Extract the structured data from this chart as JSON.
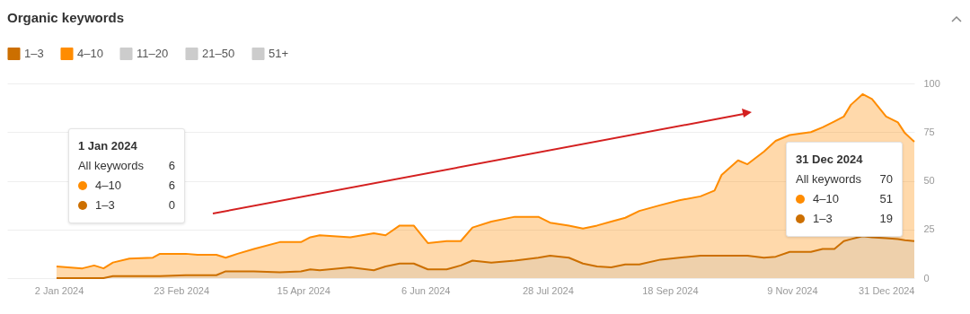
{
  "chart_data": {
    "type": "area",
    "title": "Organic keywords",
    "stacked": true,
    "legend": "top left",
    "grid": "y",
    "x": [
      "2024-01-01",
      "2024-01-12",
      "2024-01-17",
      "2024-01-21",
      "2024-01-25",
      "2024-02-01",
      "2024-02-11",
      "2024-02-14",
      "2024-02-25",
      "2024-03-01",
      "2024-03-09",
      "2024-03-13",
      "2024-03-18",
      "2024-03-25",
      "2024-04-05",
      "2024-04-14",
      "2024-04-18",
      "2024-04-22",
      "2024-05-05",
      "2024-05-15",
      "2024-05-20",
      "2024-05-26",
      "2024-06-01",
      "2024-06-07",
      "2024-06-15",
      "2024-06-21",
      "2024-06-26",
      "2024-07-04",
      "2024-07-14",
      "2024-07-24",
      "2024-07-29",
      "2024-08-06",
      "2024-08-12",
      "2024-08-18",
      "2024-08-24",
      "2024-08-30",
      "2024-09-05",
      "2024-09-14",
      "2024-09-22",
      "2024-10-01",
      "2024-10-07",
      "2024-10-10",
      "2024-10-17",
      "2024-10-21",
      "2024-10-28",
      "2024-11-02",
      "2024-11-08",
      "2024-11-17",
      "2024-11-22",
      "2024-11-27",
      "2024-12-01",
      "2024-12-04",
      "2024-12-09",
      "2024-12-13",
      "2024-12-19",
      "2024-12-24",
      "2024-12-27",
      "2024-12-31"
    ],
    "series": [
      {
        "name": "1–3",
        "color": "#cc6f00",
        "values": [
          0,
          0,
          0,
          0,
          1,
          1,
          1,
          1,
          1.5,
          1.5,
          1.5,
          3.5,
          3.5,
          3.5,
          3,
          3.5,
          4.5,
          4,
          5.5,
          4,
          6,
          7.5,
          7.5,
          4.5,
          4.5,
          6.5,
          9,
          8,
          9,
          10.5,
          11.5,
          10.5,
          7.5,
          6,
          5.5,
          7,
          7,
          9.5,
          10.5,
          11.5,
          11.5,
          11.5,
          11.5,
          11.5,
          10.5,
          11,
          13.5,
          13.5,
          15,
          15,
          19,
          20,
          21.5,
          21,
          20.5,
          20,
          19.5,
          19
        ]
      },
      {
        "name": "4–10",
        "color": "#ff8c00",
        "values": [
          6,
          5,
          6.5,
          5,
          7,
          9,
          9.5,
          11.5,
          11,
          10.5,
          10.5,
          7,
          9,
          11.5,
          15.5,
          15,
          16.5,
          18,
          15.5,
          19,
          16,
          19.5,
          19.5,
          13.5,
          14.5,
          12.5,
          17,
          21,
          22.5,
          21,
          17,
          16.5,
          18,
          21,
          23.5,
          24,
          27.5,
          28,
          29.5,
          30.5,
          33.5,
          41.5,
          49,
          47,
          54.5,
          59.5,
          60,
          61.5,
          62.5,
          65.5,
          64,
          69,
          73,
          71,
          62.5,
          60,
          55,
          51
        ]
      },
      {
        "name": "11–20",
        "color": "#cccccc",
        "values": [
          null,
          null,
          null,
          null,
          null,
          null,
          null,
          null,
          null,
          null,
          null,
          null,
          null,
          null,
          null,
          null,
          null,
          null,
          null,
          null,
          null,
          null,
          null,
          null,
          null,
          null,
          null,
          null,
          null,
          null,
          null,
          null,
          null,
          null,
          null,
          null,
          null,
          null,
          null,
          null,
          null,
          null,
          null,
          null,
          null,
          null,
          null,
          null,
          null,
          null,
          null,
          null,
          null,
          null,
          null,
          null,
          null,
          null
        ]
      },
      {
        "name": "21–50",
        "color": "#cccccc",
        "values": [
          null,
          null,
          null,
          null,
          null,
          null,
          null,
          null,
          null,
          null,
          null,
          null,
          null,
          null,
          null,
          null,
          null,
          null,
          null,
          null,
          null,
          null,
          null,
          null,
          null,
          null,
          null,
          null,
          null,
          null,
          null,
          null,
          null,
          null,
          null,
          null,
          null,
          null,
          null,
          null,
          null,
          null,
          null,
          null,
          null,
          null,
          null,
          null,
          null,
          null,
          null,
          null,
          null,
          null,
          null,
          null,
          null,
          null
        ]
      },
      {
        "name": "51+",
        "color": "#cccccc",
        "values": [
          null,
          null,
          null,
          null,
          null,
          null,
          null,
          null,
          null,
          null,
          null,
          null,
          null,
          null,
          null,
          null,
          null,
          null,
          null,
          null,
          null,
          null,
          null,
          null,
          null,
          null,
          null,
          null,
          null,
          null,
          null,
          null,
          null,
          null,
          null,
          null,
          null,
          null,
          null,
          null,
          null,
          null,
          null,
          null,
          null,
          null,
          null,
          null,
          null,
          null,
          null,
          null,
          null,
          null,
          null,
          null,
          null,
          null
        ]
      }
    ],
    "xlim": [
      "2023-12-11",
      "2024-12-31"
    ],
    "xticks": [
      {
        "value": "2024-01-02",
        "label": "2 Jan 2024"
      },
      {
        "value": "2024-02-23",
        "label": "23 Feb 2024"
      },
      {
        "value": "2024-04-15",
        "label": "15 Apr 2024"
      },
      {
        "value": "2024-06-06",
        "label": "6 Jun 2024"
      },
      {
        "value": "2024-07-28",
        "label": "28 Jul 2024"
      },
      {
        "value": "2024-09-18",
        "label": "18 Sep 2024"
      },
      {
        "value": "2024-11-09",
        "label": "9 Nov 2024"
      },
      {
        "value": "2024-12-31",
        "label": "31 Dec 2024"
      }
    ],
    "ylim": [
      0,
      100
    ],
    "yticks": [
      0,
      25,
      50,
      75,
      100
    ],
    "annotations": [
      "1 Jan 2024",
      "All keywords",
      "6",
      "4–10",
      "6",
      "1–3",
      "0",
      "31 Dec 2024",
      "All keywords",
      "70",
      "4–10",
      "51",
      "1–3",
      "19"
    ]
  }
}
